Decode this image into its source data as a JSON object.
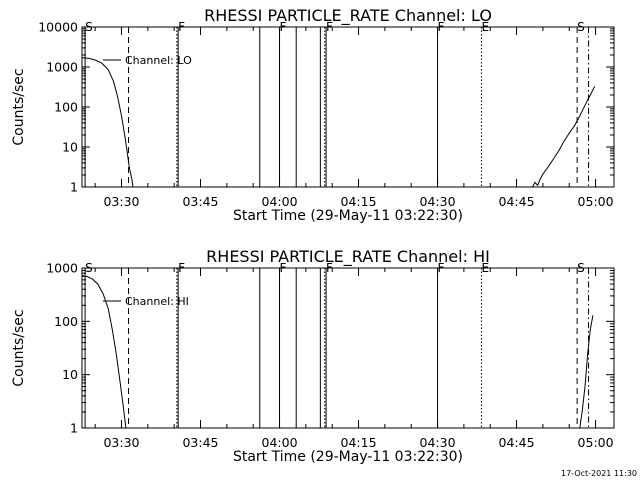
{
  "chart_data": [
    {
      "type": "line",
      "title": "RHESSI PARTICLE_RATE Channel: LO",
      "xlabel": "Start Time (29-May-11 03:22:30)",
      "ylabel": "Counts/sec",
      "yscale": "log",
      "xlim": [
        "03:22:30",
        "05:03:30"
      ],
      "ylim": [
        1,
        10000
      ],
      "x_ticks": [
        "03:30",
        "03:45",
        "04:00",
        "04:15",
        "04:30",
        "04:45",
        "05:00"
      ],
      "y_ticks": [
        "1",
        "10",
        "100",
        "1000",
        "10000"
      ],
      "legend": {
        "label": "Channel: LO",
        "position": "top-left"
      },
      "series": [
        {
          "name": "Channel: LO",
          "points": [
            [
              "03:22:30",
              1700
            ],
            [
              "03:23:45",
              1650
            ],
            [
              "03:25:00",
              1500
            ],
            [
              "03:26:15",
              1250
            ],
            [
              "03:27:30",
              850
            ],
            [
              "03:28:30",
              430
            ],
            [
              "03:29:15",
              180
            ],
            [
              "03:30:00",
              60
            ],
            [
              "03:30:45",
              15
            ],
            [
              "03:31:30",
              3
            ],
            [
              "03:32:00",
              1.5
            ],
            [
              "03:32:10",
              1
            ]
          ]
        },
        {
          "name": "Channel: LO",
          "points": [
            [
              "04:48:00",
              1
            ],
            [
              "04:48:30",
              1.3
            ],
            [
              "04:49:00",
              1.1
            ],
            [
              "04:49:30",
              1.6
            ],
            [
              "04:50:00",
              2.1
            ],
            [
              "04:51:00",
              3.2
            ],
            [
              "04:52:00",
              5
            ],
            [
              "04:53:00",
              8
            ],
            [
              "04:54:00",
              14
            ],
            [
              "04:55:00",
              22
            ],
            [
              "04:56:00",
              34
            ],
            [
              "04:57:00",
              60
            ],
            [
              "04:58:00",
              110
            ],
            [
              "04:59:00",
              200
            ],
            [
              "04:59:50",
              330
            ]
          ]
        }
      ],
      "markers": [
        {
          "time": "03:23:05",
          "style": "solid",
          "label": "S"
        },
        {
          "time": "03:31:20",
          "style": "dashed",
          "label": ""
        },
        {
          "time": "03:40:30",
          "style": "dotted",
          "label": ""
        },
        {
          "time": "03:40:45",
          "style": "solid",
          "label": "F"
        },
        {
          "time": "03:56:15",
          "style": "solid",
          "label": ""
        },
        {
          "time": "04:00:00",
          "style": "solid",
          "label": "F"
        },
        {
          "time": "04:03:10",
          "style": "solid",
          "label": ""
        },
        {
          "time": "04:07:45",
          "style": "solid",
          "label": ""
        },
        {
          "time": "04:08:35",
          "style": "dotted",
          "label": ""
        },
        {
          "time": "04:08:50",
          "style": "solid",
          "label": "F"
        },
        {
          "time": "04:30:00",
          "style": "solid",
          "label": "F"
        },
        {
          "time": "04:38:20",
          "style": "dotted",
          "label": "E"
        },
        {
          "time": "04:56:30",
          "style": "dashed",
          "label": "S"
        },
        {
          "time": "04:58:40",
          "style": "dashdot",
          "label": ""
        }
      ]
    },
    {
      "type": "line",
      "title": "RHESSI PARTICLE_RATE Channel: HI",
      "xlabel": "Start Time (29-May-11 03:22:30)",
      "ylabel": "Counts/sec",
      "yscale": "log",
      "xlim": [
        "03:22:30",
        "05:03:30"
      ],
      "ylim": [
        1,
        1000
      ],
      "x_ticks": [
        "03:30",
        "03:45",
        "04:00",
        "04:15",
        "04:30",
        "04:45",
        "05:00"
      ],
      "y_ticks": [
        "1",
        "10",
        "100",
        "1000"
      ],
      "legend": {
        "label": "Channel: HI",
        "position": "top-left"
      },
      "series": [
        {
          "name": "Channel: HI",
          "points": [
            [
              "03:22:30",
              720
            ],
            [
              "03:23:30",
              690
            ],
            [
              "03:24:30",
              620
            ],
            [
              "03:25:30",
              500
            ],
            [
              "03:26:30",
              330
            ],
            [
              "03:27:30",
              170
            ],
            [
              "03:28:15",
              70
            ],
            [
              "03:29:00",
              25
            ],
            [
              "03:29:45",
              7
            ],
            [
              "03:30:20",
              2.5
            ],
            [
              "03:30:50",
              1
            ]
          ]
        },
        {
          "name": "Channel: HI",
          "points": [
            [
              "04:57:00",
              1
            ],
            [
              "04:57:30",
              2.2
            ],
            [
              "04:58:00",
              6
            ],
            [
              "04:58:30",
              25
            ],
            [
              "04:59:00",
              70
            ],
            [
              "04:59:30",
              130
            ]
          ]
        }
      ],
      "markers": [
        {
          "time": "03:23:05",
          "style": "solid",
          "label": "S"
        },
        {
          "time": "03:31:20",
          "style": "dashed",
          "label": ""
        },
        {
          "time": "03:40:30",
          "style": "dotted",
          "label": ""
        },
        {
          "time": "03:40:45",
          "style": "solid",
          "label": "F"
        },
        {
          "time": "03:56:15",
          "style": "solid",
          "label": ""
        },
        {
          "time": "04:00:00",
          "style": "solid",
          "label": "F"
        },
        {
          "time": "04:03:10",
          "style": "solid",
          "label": ""
        },
        {
          "time": "04:07:45",
          "style": "solid",
          "label": ""
        },
        {
          "time": "04:08:35",
          "style": "dotted",
          "label": ""
        },
        {
          "time": "04:08:50",
          "style": "solid",
          "label": "F"
        },
        {
          "time": "04:30:00",
          "style": "solid",
          "label": "F"
        },
        {
          "time": "04:38:20",
          "style": "dotted",
          "label": "E"
        },
        {
          "time": "04:56:30",
          "style": "dashed",
          "label": "S"
        },
        {
          "time": "04:58:40",
          "style": "dashdot",
          "label": ""
        }
      ]
    }
  ],
  "footer": {
    "timestamp": "17-Oct-2021 11:30"
  }
}
